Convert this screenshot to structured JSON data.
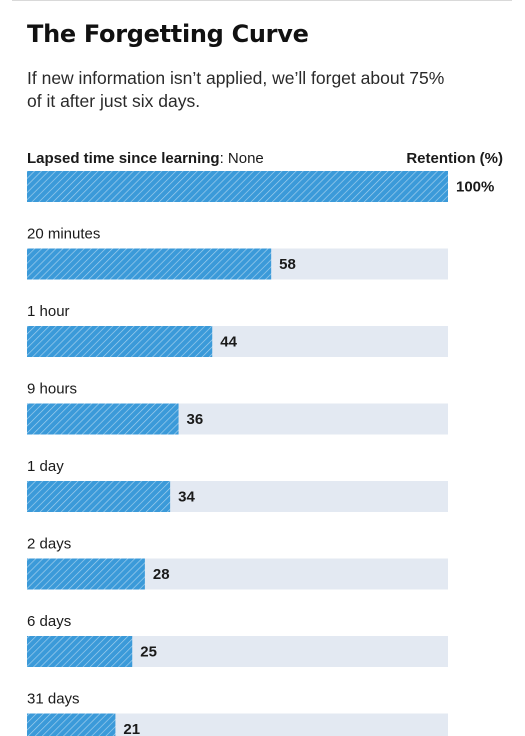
{
  "title": "The Forgetting Curve",
  "subtitle": "If new information isn’t applied, we’ll forget about 75% of it after just six days.",
  "header": {
    "left_bold": "Lapsed time since learning",
    "left_rest": ": None",
    "right": "Retention (%)"
  },
  "colors": {
    "bar": "#3b9ad9",
    "bar_stripe": "#ffffff",
    "track": "#e3e9f2",
    "text": "#1a1a1a"
  },
  "chart_data": {
    "type": "bar",
    "orientation": "horizontal",
    "categories": [
      "",
      "20 minutes",
      "1 hour",
      "9 hours",
      "1 day",
      "2 days",
      "6 days",
      "31 days"
    ],
    "values": [
      100,
      58,
      44,
      36,
      34,
      28,
      25,
      21
    ],
    "value_labels": [
      "100%",
      "58",
      "44",
      "36",
      "34",
      "28",
      "25",
      "21"
    ],
    "xlim": [
      0,
      100
    ],
    "xlabel": "Retention (%)",
    "ylabel": "Lapsed time since learning",
    "grid": false,
    "legend": "none"
  }
}
